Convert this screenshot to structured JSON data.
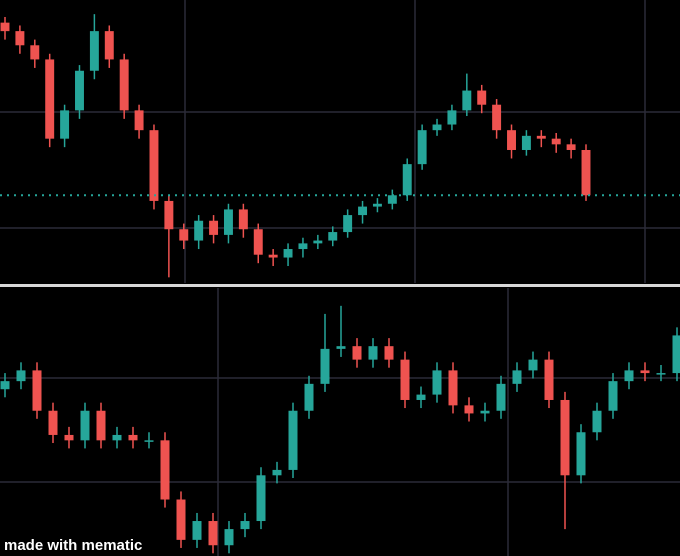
{
  "chart_data": [
    {
      "type": "candlestick",
      "ylim": [
        0,
        100
      ],
      "up_color": "#26a69a",
      "down_color": "#ef5350",
      "open": [
        92,
        89,
        84,
        79,
        51,
        61,
        75,
        89,
        79,
        61,
        54,
        29,
        19,
        15,
        22,
        17,
        26,
        19,
        10,
        9,
        12,
        14,
        15,
        18,
        24,
        27,
        28,
        31,
        42,
        54,
        56,
        61,
        68,
        63,
        54,
        47,
        52,
        51,
        49,
        47
      ],
      "high": [
        94,
        91,
        86,
        81,
        63,
        77,
        95,
        91,
        81,
        63,
        56,
        31,
        21,
        24,
        24,
        28,
        28,
        21,
        12,
        14,
        16,
        17,
        20,
        26,
        29,
        30,
        33,
        44,
        56,
        58,
        63,
        74,
        70,
        65,
        56,
        54,
        54,
        53,
        51,
        49
      ],
      "low": [
        86,
        81,
        76,
        48,
        48,
        58,
        72,
        76,
        58,
        51,
        26,
        2,
        12,
        12,
        14,
        14,
        16,
        7,
        6,
        6,
        9,
        12,
        13,
        16,
        21,
        25,
        26,
        29,
        40,
        52,
        54,
        59,
        60,
        51,
        44,
        45,
        48,
        46,
        44,
        29
      ],
      "close": [
        89,
        84,
        79,
        51,
        61,
        75,
        89,
        79,
        61,
        54,
        29,
        19,
        15,
        22,
        17,
        26,
        19,
        10,
        9,
        12,
        14,
        15,
        18,
        24,
        27,
        28,
        31,
        42,
        54,
        56,
        61,
        68,
        63,
        54,
        47,
        52,
        51,
        49,
        47,
        31
      ]
    },
    {
      "type": "candlestick",
      "ylim": [
        0,
        100
      ],
      "up_color": "#26a69a",
      "down_color": "#ef5350",
      "open": [
        62,
        65,
        69,
        54,
        45,
        43,
        54,
        43,
        45,
        43,
        43,
        21,
        6,
        13,
        4,
        10,
        13,
        30,
        32,
        54,
        64,
        77,
        78,
        73,
        78,
        73,
        58,
        60,
        69,
        56,
        53,
        54,
        64,
        69,
        73,
        58,
        30,
        46,
        54,
        65,
        69,
        68,
        68
      ],
      "high": [
        68,
        72,
        72,
        57,
        48,
        57,
        57,
        48,
        48,
        46,
        46,
        24,
        16,
        16,
        13,
        16,
        33,
        35,
        57,
        67,
        90,
        93,
        81,
        81,
        81,
        76,
        63,
        72,
        72,
        59,
        57,
        67,
        72,
        76,
        76,
        61,
        49,
        57,
        68,
        72,
        72,
        71,
        85
      ],
      "low": [
        59,
        62,
        51,
        42,
        40,
        40,
        40,
        40,
        40,
        40,
        18,
        3,
        3,
        1,
        1,
        7,
        10,
        27,
        29,
        51,
        61,
        74,
        70,
        70,
        70,
        55,
        55,
        57,
        53,
        50,
        50,
        51,
        61,
        66,
        55,
        10,
        27,
        43,
        51,
        62,
        65,
        65,
        65
      ],
      "close": [
        65,
        69,
        54,
        45,
        43,
        54,
        43,
        45,
        43,
        43,
        21,
        6,
        13,
        4,
        10,
        13,
        30,
        32,
        54,
        64,
        77,
        78,
        73,
        78,
        73,
        58,
        60,
        69,
        56,
        53,
        54,
        64,
        69,
        73,
        58,
        30,
        46,
        54,
        65,
        69,
        68,
        68,
        82
      ]
    }
  ],
  "watermark": "made with mematic"
}
